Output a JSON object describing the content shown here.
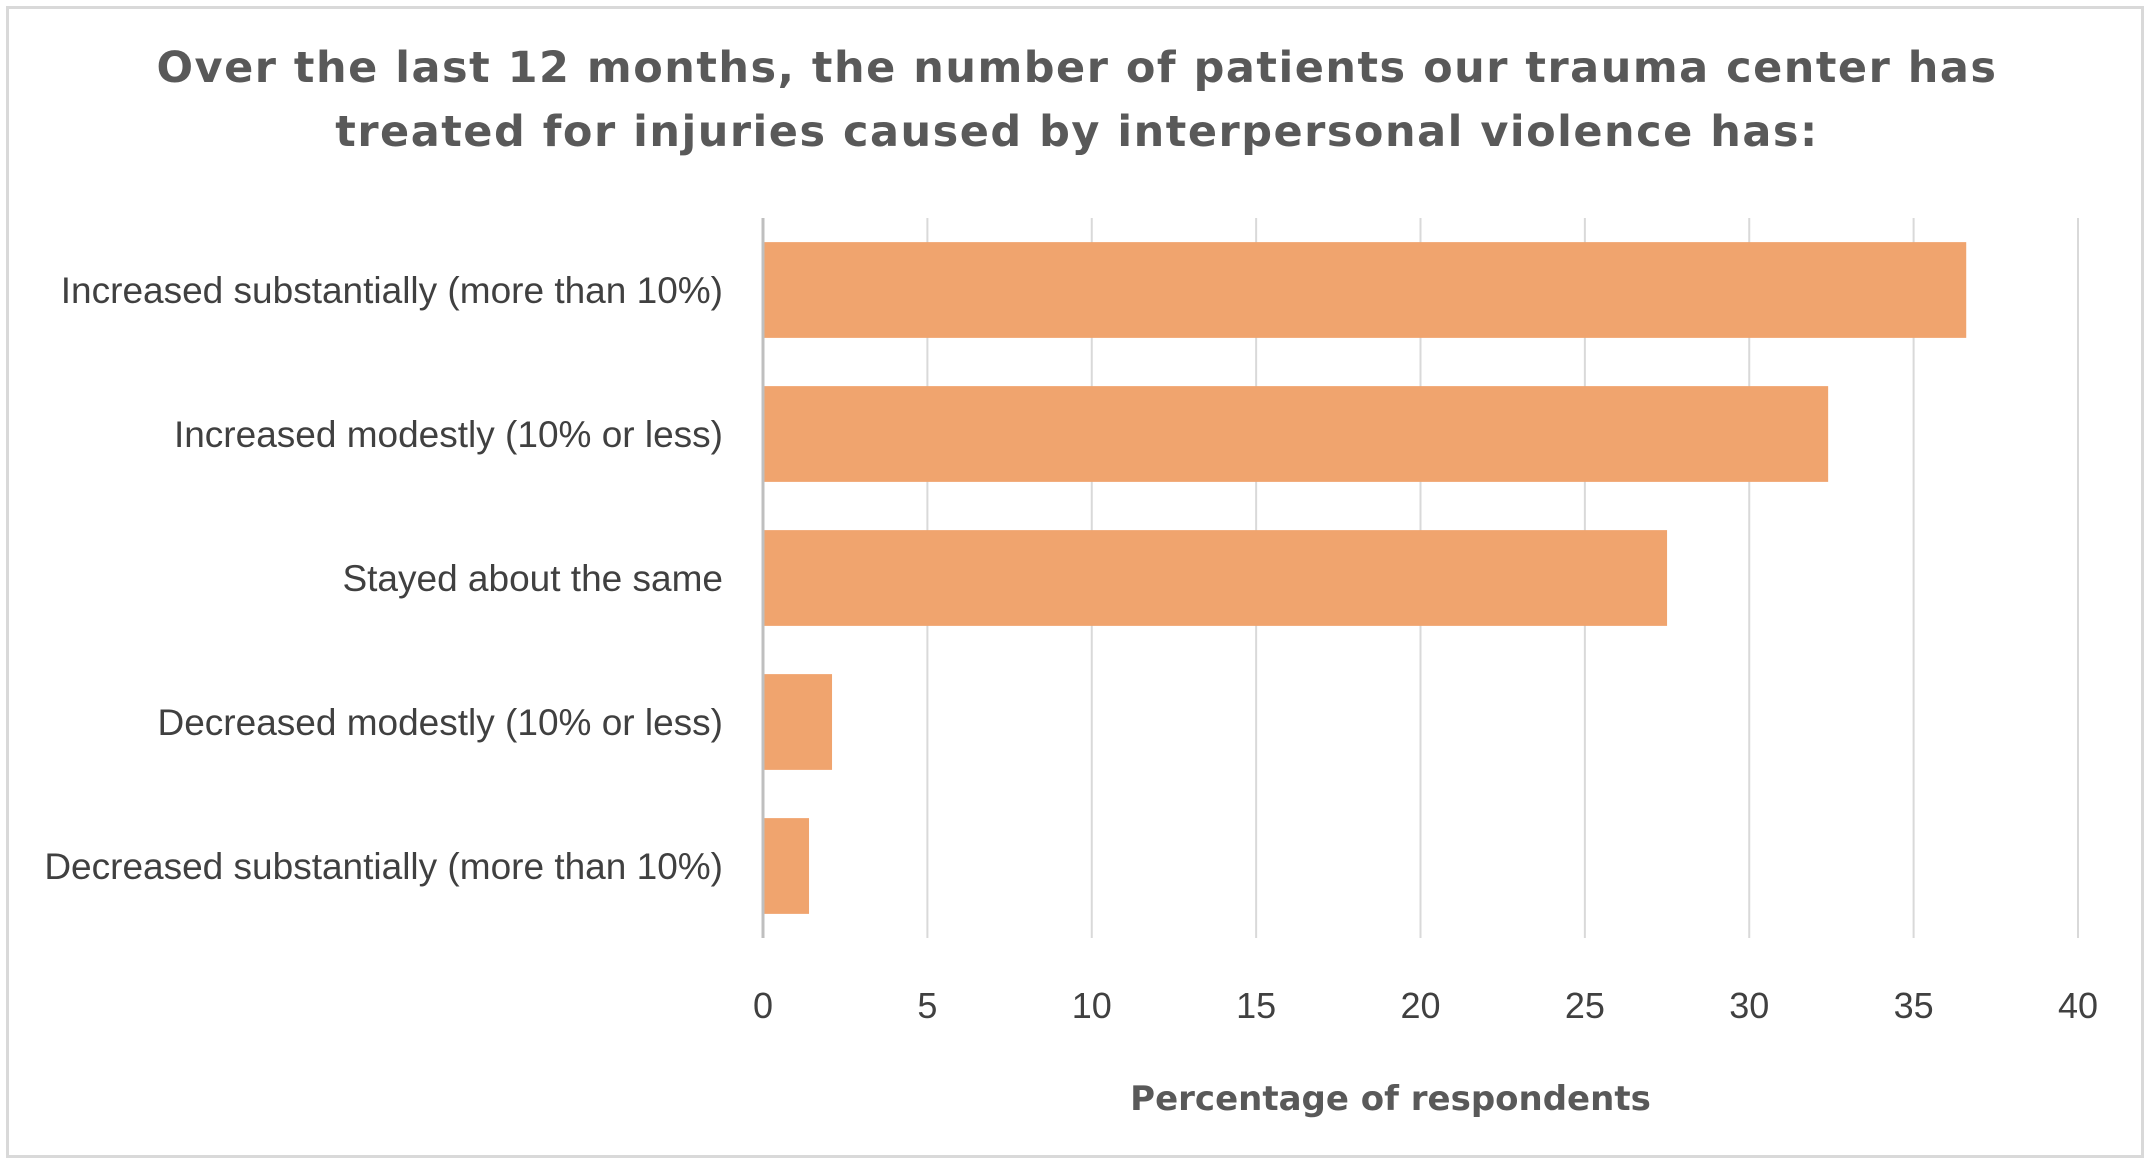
{
  "chart_data": {
    "type": "bar",
    "orientation": "horizontal",
    "title_lines": [
      "Over the last 12 months, the number of patients our trauma center has",
      "treated for injuries caused by interpersonal violence has:"
    ],
    "categories": [
      "Increased substantially (more than 10%)",
      "Increased modestly (10% or less)",
      "Stayed about the same",
      "Decreased modestly (10% or less)",
      "Decreased substantially (more than 10%)"
    ],
    "values": [
      36.6,
      32.4,
      27.5,
      2.1,
      1.4
    ],
    "xlabel": "Percentage of respondents",
    "ylabel": "",
    "xlim": [
      0,
      40
    ],
    "xticks": [
      0,
      5,
      10,
      15,
      20,
      25,
      30,
      35,
      40
    ],
    "grid": "vertical",
    "legend": "none",
    "bar_color": "#F0A46E",
    "grid_color": "#D9D9D9",
    "axis_color": "#BFBFBF"
  }
}
